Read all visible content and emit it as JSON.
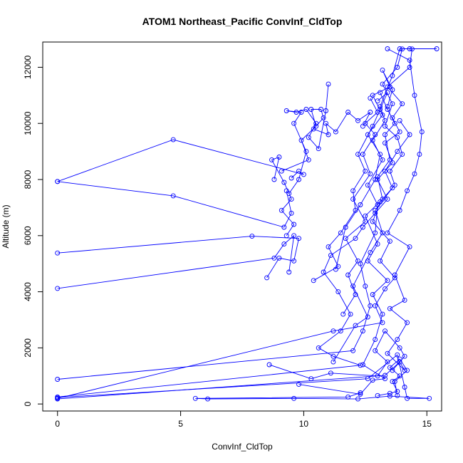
{
  "chart_data": {
    "type": "line",
    "title": "ATOM1 Northeast_Pacific ConvInf_CldTop",
    "xlabel": "ConvInf_CldTop",
    "ylabel": "Altitude (m)",
    "xlim": [
      -0.6,
      15.6
    ],
    "ylim": [
      -250,
      12900
    ],
    "xticks": [
      0,
      5,
      10,
      15
    ],
    "yticks": [
      0,
      2000,
      4000,
      6000,
      8000,
      10000,
      12000
    ],
    "grid": false,
    "color": "#0000FF",
    "marker": "open-circle",
    "series": [
      {
        "points": [
          [
            0,
            7930
          ],
          [
            4.7,
            9420
          ],
          [
            10.0,
            8180
          ],
          [
            9.8,
            8300
          ],
          [
            9.5,
            8050
          ]
        ]
      },
      {
        "points": [
          [
            0,
            7930
          ],
          [
            4.7,
            7420
          ],
          [
            9.2,
            6300
          ],
          [
            9.5,
            6800
          ],
          [
            9.3,
            7600
          ]
        ]
      },
      {
        "points": [
          [
            0,
            5380
          ],
          [
            7.9,
            5980
          ],
          [
            9.8,
            5900
          ],
          [
            9.6,
            5100
          ],
          [
            9.0,
            5200
          ],
          [
            8.5,
            4500
          ]
        ]
      },
      {
        "points": [
          [
            0,
            4120
          ],
          [
            8.8,
            5200
          ],
          [
            9.2,
            5700
          ],
          [
            9.6,
            6000
          ],
          [
            9.4,
            4700
          ]
        ]
      },
      {
        "points": [
          [
            0,
            880
          ],
          [
            12.0,
            1900
          ],
          [
            12.4,
            2600
          ],
          [
            12.7,
            3500
          ],
          [
            12.5,
            4200
          ],
          [
            12.3,
            5000
          ],
          [
            12.9,
            6100
          ],
          [
            13.0,
            7100
          ],
          [
            12.6,
            7800
          ],
          [
            13.2,
            8700
          ],
          [
            12.8,
            9400
          ],
          [
            13.3,
            10100
          ],
          [
            13.1,
            10600
          ],
          [
            13.6,
            11700
          ],
          [
            13.9,
            12660
          ],
          [
            14.3,
            12660
          ],
          [
            15.4,
            12660
          ]
        ]
      },
      {
        "points": [
          [
            0,
            250
          ],
          [
            12.3,
            1380
          ],
          [
            11.2,
            1700
          ],
          [
            10.6,
            2000
          ],
          [
            11.5,
            2600
          ],
          [
            11.9,
            3200
          ],
          [
            11.4,
            4000
          ],
          [
            10.8,
            4700
          ],
          [
            11.1,
            5300
          ],
          [
            12.1,
            5900
          ],
          [
            12.4,
            6300
          ],
          [
            12.9,
            6800
          ],
          [
            13.4,
            7300
          ],
          [
            13.0,
            8000
          ],
          [
            13.6,
            8600
          ],
          [
            13.3,
            9300
          ],
          [
            13.9,
            9700
          ],
          [
            13.6,
            10200
          ],
          [
            14.0,
            10700
          ],
          [
            13.4,
            11300
          ],
          [
            14.3,
            12000
          ],
          [
            14.4,
            12650
          ]
        ]
      },
      {
        "points": [
          [
            0,
            200
          ],
          [
            11.2,
            2600
          ],
          [
            13.2,
            2900
          ],
          [
            12.9,
            3500
          ],
          [
            13.3,
            4100
          ],
          [
            13.7,
            4500
          ],
          [
            13.1,
            5100
          ],
          [
            13.5,
            5800
          ],
          [
            12.8,
            6500
          ],
          [
            13.1,
            7200
          ],
          [
            13.7,
            7800
          ],
          [
            13.5,
            8300
          ],
          [
            14.0,
            8900
          ],
          [
            13.8,
            9500
          ],
          [
            13.3,
            9900
          ],
          [
            13.6,
            10700
          ],
          [
            13.2,
            11400
          ],
          [
            13.8,
            12000
          ],
          [
            14.0,
            12650
          ]
        ]
      },
      {
        "points": [
          [
            0,
            180
          ],
          [
            13.3,
            1020
          ],
          [
            13.9,
            1500
          ],
          [
            14.1,
            1200
          ],
          [
            13.4,
            1800
          ],
          [
            13.8,
            2300
          ],
          [
            14.2,
            2900
          ],
          [
            13.5,
            3400
          ],
          [
            14.1,
            3700
          ],
          [
            13.7,
            4600
          ],
          [
            14.3,
            5600
          ],
          [
            13.4,
            6100
          ],
          [
            13.9,
            6900
          ],
          [
            14.2,
            7600
          ],
          [
            14.5,
            8200
          ],
          [
            14.7,
            8900
          ],
          [
            14.8,
            9700
          ],
          [
            14.5,
            11000
          ],
          [
            14.3,
            12250
          ],
          [
            13.4,
            12660
          ]
        ]
      },
      {
        "points": [
          [
            0,
            230
          ],
          [
            12.6,
            900
          ],
          [
            13.8,
            1750
          ],
          [
            14.1,
            600
          ],
          [
            14.2,
            200
          ],
          [
            15.1,
            200
          ],
          [
            13.5,
            280
          ],
          [
            12.2,
            180
          ],
          [
            9.6,
            200
          ],
          [
            6.1,
            180
          ],
          [
            5.6,
            200
          ],
          [
            11.8,
            250
          ],
          [
            12.3,
            400
          ]
        ]
      },
      {
        "points": [
          [
            9.1,
            8300
          ],
          [
            10.2,
            8700
          ],
          [
            9.9,
            9400
          ],
          [
            10.5,
            9900
          ],
          [
            10.3,
            10500
          ],
          [
            10.7,
            10500
          ],
          [
            10.8,
            10200
          ],
          [
            10.4,
            9800
          ],
          [
            11.0,
            9600
          ],
          [
            10.9,
            10000
          ],
          [
            11.3,
            9700
          ],
          [
            11.8,
            10400
          ],
          [
            12.2,
            10100
          ],
          [
            12.7,
            10400
          ],
          [
            12.4,
            9900
          ]
        ]
      },
      {
        "points": [
          [
            9.4,
            7500
          ],
          [
            9.8,
            8000
          ],
          [
            10.1,
            9000
          ],
          [
            9.6,
            10000
          ],
          [
            9.9,
            10400
          ],
          [
            9.3,
            10450
          ],
          [
            9.7,
            10400
          ],
          [
            10.1,
            10500
          ],
          [
            10.5,
            10000
          ],
          [
            10.2,
            9500
          ],
          [
            10.6,
            9100
          ],
          [
            10.9,
            10450
          ],
          [
            11.0,
            11400
          ]
        ]
      },
      {
        "points": [
          [
            8.8,
            8000
          ],
          [
            9.0,
            8800
          ],
          [
            8.7,
            8700
          ],
          [
            9.2,
            7900
          ],
          [
            9.5,
            7300
          ],
          [
            9.1,
            6900
          ],
          [
            9.6,
            6400
          ],
          [
            9.3,
            6000
          ]
        ]
      },
      {
        "points": [
          [
            11.3,
            4800
          ],
          [
            11.7,
            6300
          ],
          [
            12.3,
            7100
          ],
          [
            12.9,
            8000
          ],
          [
            13.1,
            8900
          ],
          [
            12.6,
            9600
          ],
          [
            13.2,
            10300
          ],
          [
            12.8,
            11000
          ],
          [
            13.5,
            11300
          ],
          [
            13.2,
            11900
          ],
          [
            13.6,
            11200
          ],
          [
            13.4,
            10600
          ]
        ]
      },
      {
        "points": [
          [
            10.4,
            4400
          ],
          [
            11.4,
            4900
          ],
          [
            11.0,
            5600
          ],
          [
            11.5,
            6100
          ],
          [
            12.1,
            6900
          ],
          [
            12.0,
            7600
          ],
          [
            12.5,
            8300
          ],
          [
            12.2,
            8900
          ],
          [
            12.8,
            9900
          ],
          [
            13.1,
            10500
          ],
          [
            13.4,
            11100
          ],
          [
            13.0,
            10800
          ]
        ]
      },
      {
        "points": [
          [
            8.6,
            1400
          ],
          [
            10.3,
            900
          ],
          [
            11.1,
            1100
          ],
          [
            13.0,
            1000
          ],
          [
            13.4,
            1500
          ],
          [
            12.9,
            1900
          ],
          [
            13.3,
            2600
          ],
          [
            13.9,
            2000
          ],
          [
            14.1,
            1700
          ],
          [
            13.6,
            1200
          ]
        ]
      },
      {
        "points": [
          [
            9.8,
            700
          ],
          [
            12.3,
            350
          ],
          [
            12.8,
            850
          ],
          [
            13.3,
            900
          ],
          [
            12.4,
            1400
          ],
          [
            12.9,
            2300
          ],
          [
            13.2,
            3200
          ],
          [
            12.8,
            3900
          ],
          [
            13.4,
            4400
          ],
          [
            12.6,
            5100
          ],
          [
            13.0,
            5700
          ],
          [
            12.5,
            6700
          ],
          [
            13.2,
            7300
          ],
          [
            13.0,
            8100
          ],
          [
            13.5,
            8700
          ],
          [
            13.3,
            9600
          ],
          [
            13.7,
            10000
          ],
          [
            13.4,
            10500
          ],
          [
            13.1,
            11100
          ]
        ]
      },
      {
        "points": [
          [
            13.0,
            300
          ],
          [
            13.5,
            380
          ],
          [
            13.8,
            450
          ],
          [
            13.6,
            800
          ],
          [
            13.9,
            1000
          ],
          [
            13.5,
            1300
          ],
          [
            13.9,
            1600
          ],
          [
            14.2,
            1200
          ],
          [
            13.7,
            800
          ],
          [
            13.8,
            300
          ]
        ]
      },
      {
        "points": [
          [
            11.6,
            3200
          ],
          [
            12.1,
            3900
          ],
          [
            11.8,
            4600
          ],
          [
            12.2,
            5100
          ],
          [
            11.7,
            5900
          ],
          [
            12.5,
            6500
          ],
          [
            12.0,
            7300
          ],
          [
            12.7,
            8200
          ],
          [
            12.4,
            8900
          ],
          [
            12.9,
            9600
          ],
          [
            12.5,
            10000
          ],
          [
            13.0,
            10400
          ],
          [
            12.7,
            10900
          ]
        ]
      },
      {
        "points": [
          [
            11.2,
            1500
          ],
          [
            12.1,
            2800
          ],
          [
            12.6,
            3100
          ],
          [
            12.0,
            4200
          ],
          [
            12.7,
            5400
          ],
          [
            13.2,
            6100
          ],
          [
            12.9,
            6900
          ],
          [
            13.6,
            7700
          ],
          [
            13.3,
            8300
          ],
          [
            13.8,
            9000
          ],
          [
            14.3,
            9600
          ],
          [
            13.9,
            10100
          ]
        ]
      }
    ]
  }
}
